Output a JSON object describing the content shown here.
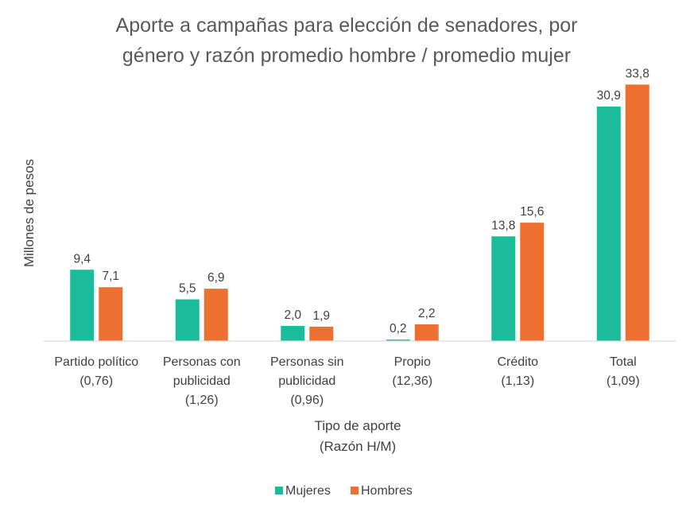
{
  "chart_data": {
    "type": "bar",
    "title_lines": [
      "Aporte a campañas para elección de senadores, por",
      "género y razón promedio hombre / promedio mujer"
    ],
    "ylabel": "Millones de pesos",
    "xlabel_lines": [
      "Tipo de aporte",
      "(Razón H/M)"
    ],
    "categories": [
      [
        "Partido político",
        "(0,76)"
      ],
      [
        "Personas con",
        "publicidad",
        "(1,26)"
      ],
      [
        "Personas sin",
        "publicidad",
        "(0,96)"
      ],
      [
        "Propio",
        "(12,36)"
      ],
      [
        "Crédito",
        "(1,13)"
      ],
      [
        "Total",
        "(1,09)"
      ]
    ],
    "series": [
      {
        "name": "Mujeres",
        "color": "#1abc9c",
        "values": [
          9.4,
          5.5,
          2.0,
          0.2,
          13.8,
          30.9
        ],
        "labels": [
          "9,4",
          "5,5",
          "2,0",
          "0,2",
          "13,8",
          "30,9"
        ]
      },
      {
        "name": "Hombres",
        "color": "#ed7031",
        "values": [
          7.1,
          6.9,
          1.9,
          2.2,
          15.6,
          33.8
        ],
        "labels": [
          "7,1",
          "6,9",
          "1,9",
          "2,2",
          "15,6",
          "33,8"
        ]
      }
    ],
    "ylim": [
      0,
      35
    ],
    "grid": false,
    "legend_position": "bottom"
  }
}
